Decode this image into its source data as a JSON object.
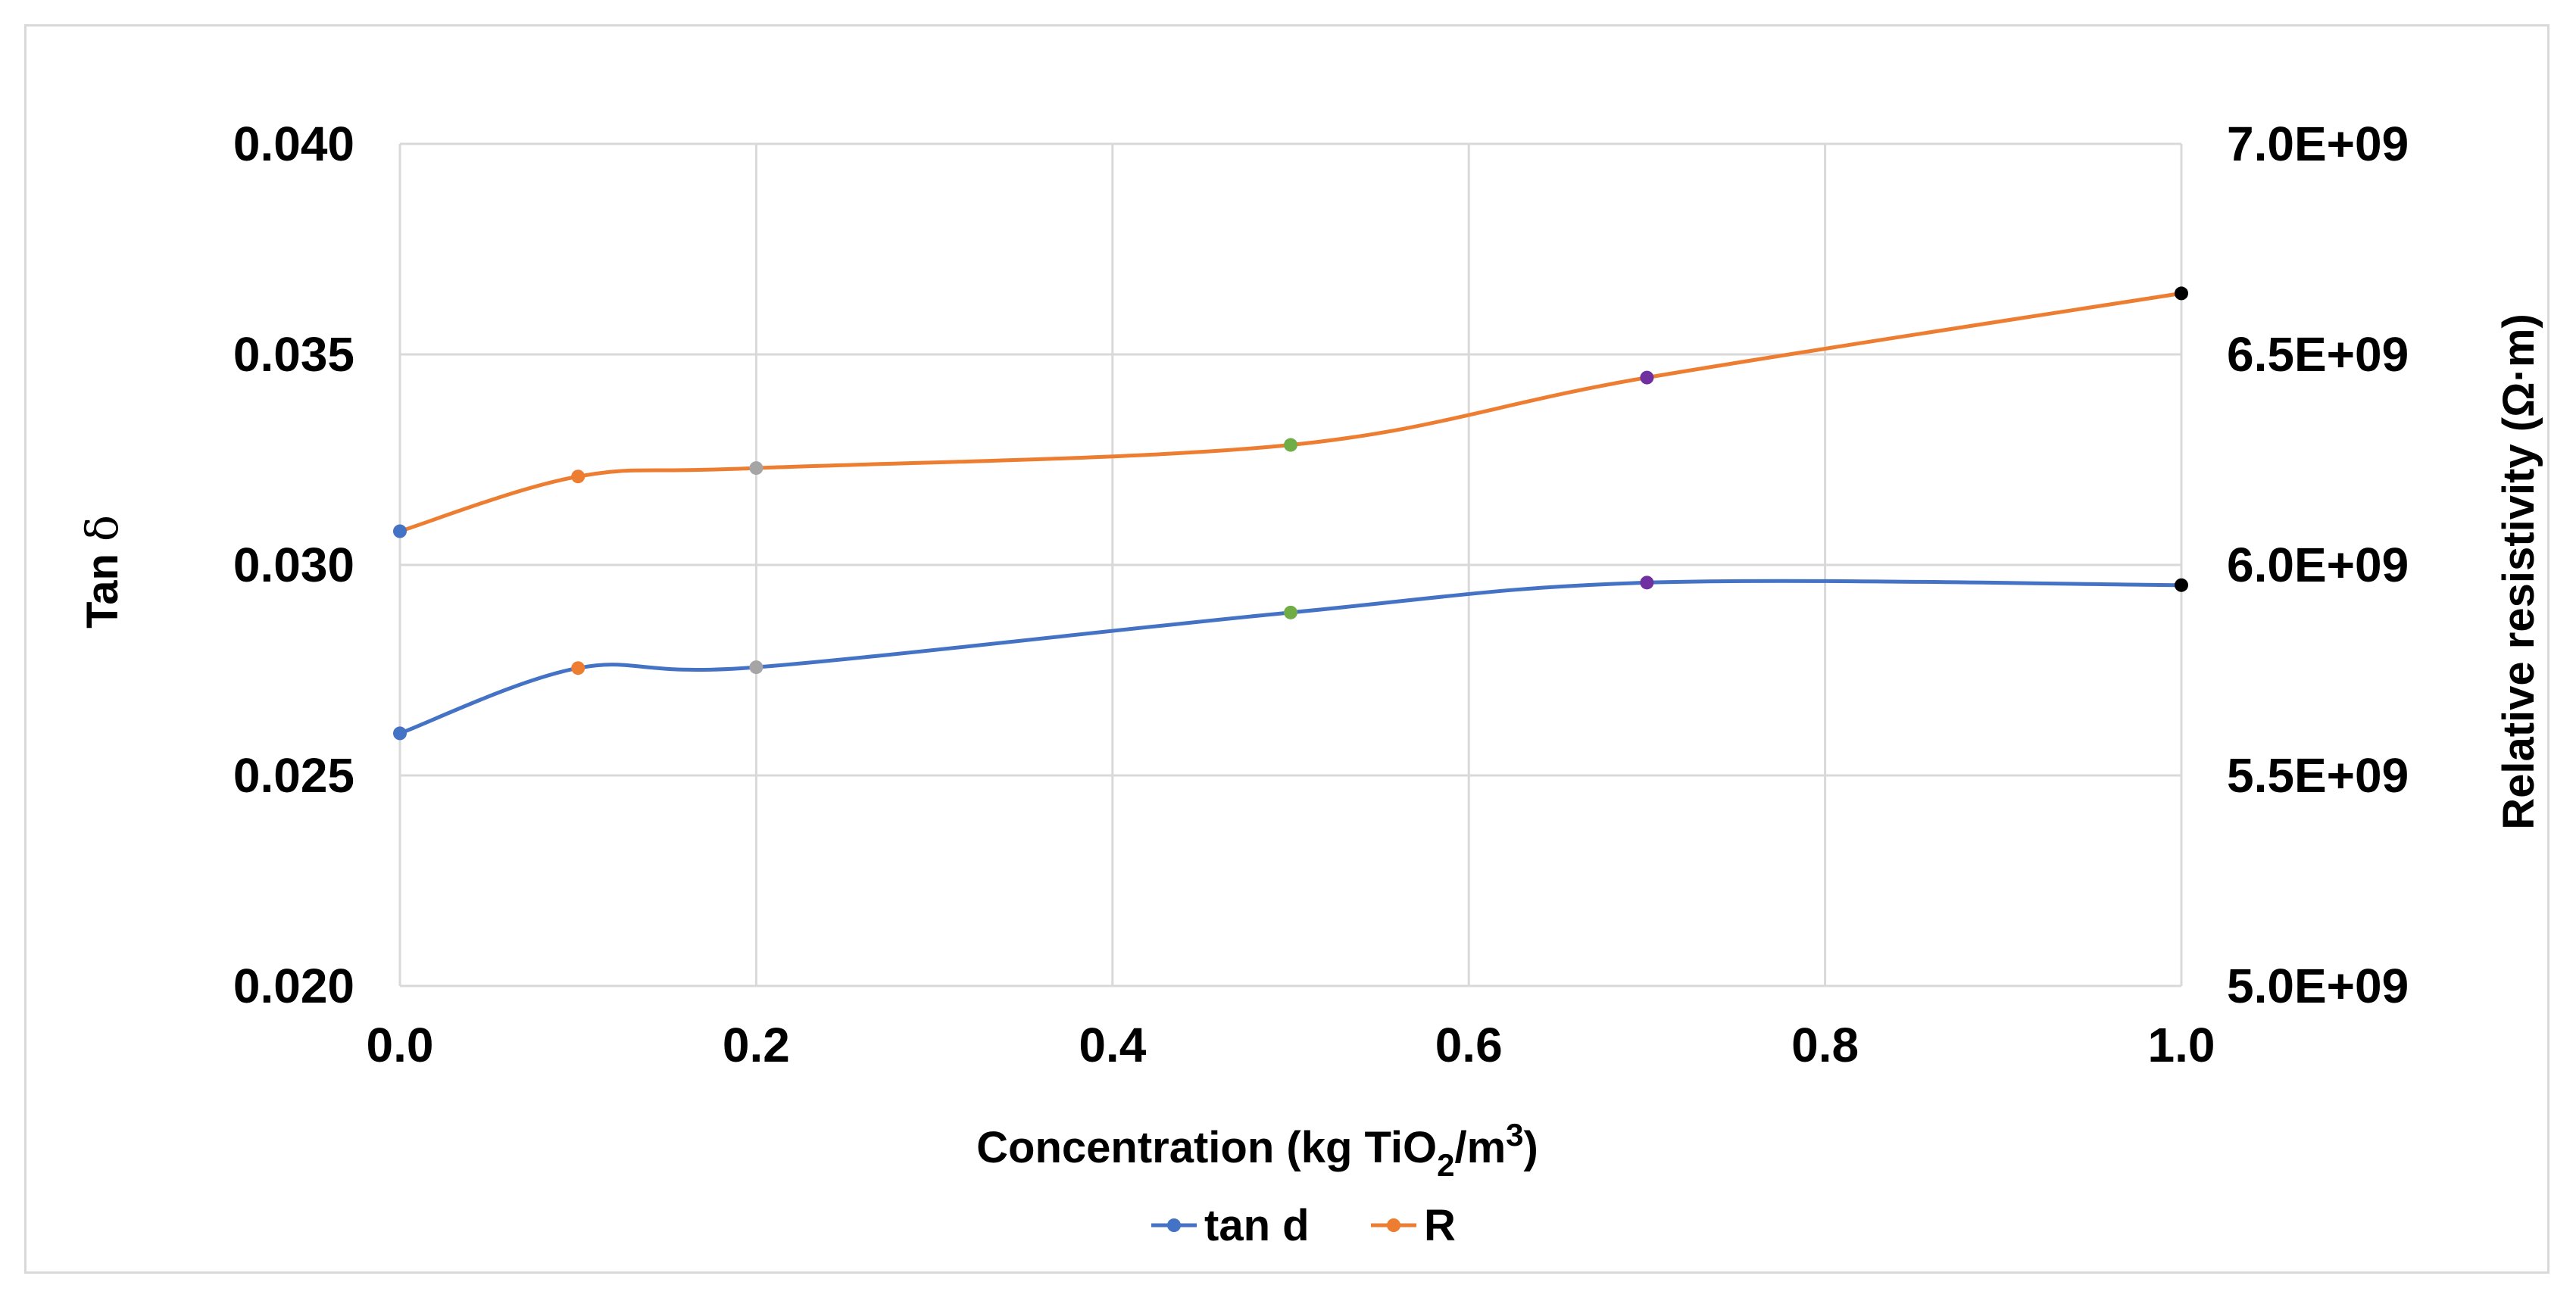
{
  "chart_data": {
    "type": "line",
    "x": [
      0.0,
      0.1,
      0.2,
      0.5,
      0.7,
      1.0
    ],
    "xlim": [
      0.0,
      1.0
    ],
    "xticks": [
      "0.0",
      "0.2",
      "0.4",
      "0.6",
      "0.8",
      "1.0"
    ],
    "xlabel": {
      "prefix": "Concentration (kg TiO",
      "sub": "2",
      "middle": "/m",
      "sup": "3",
      "suffix": ")"
    },
    "ylabel_left": {
      "prefix": "Tan ",
      "symbol": "δ"
    },
    "ylabel_right": "Relative resistivity (Ω·m)",
    "ylim_left": [
      0.02,
      0.04
    ],
    "yticks_left": [
      "0.020",
      "0.025",
      "0.030",
      "0.035",
      "0.040"
    ],
    "ylim_right": [
      5000000000.0,
      7000000000.0
    ],
    "yticks_right": [
      "5.0E+09",
      "5.5E+09",
      "6.0E+09",
      "6.5E+09",
      "7.0E+09"
    ],
    "grid": true,
    "legend_position": "bottom",
    "point_colors": [
      "#4472c4",
      "#ed7d31",
      "#a5a5a5",
      "#70ad47",
      "#7030a0",
      "#000000"
    ],
    "series": [
      {
        "name": "tan d",
        "axis": "left",
        "color": "#4472c4",
        "values": [
          0.026,
          0.02755,
          0.02757,
          0.02887,
          0.02958,
          0.02952
        ]
      },
      {
        "name": "R",
        "axis": "right",
        "color": "#ed7d31",
        "values": [
          6080000000.0,
          6210000000.0,
          6230000000.0,
          6285000000.0,
          6445000000.0,
          6645000000.0
        ]
      }
    ]
  }
}
